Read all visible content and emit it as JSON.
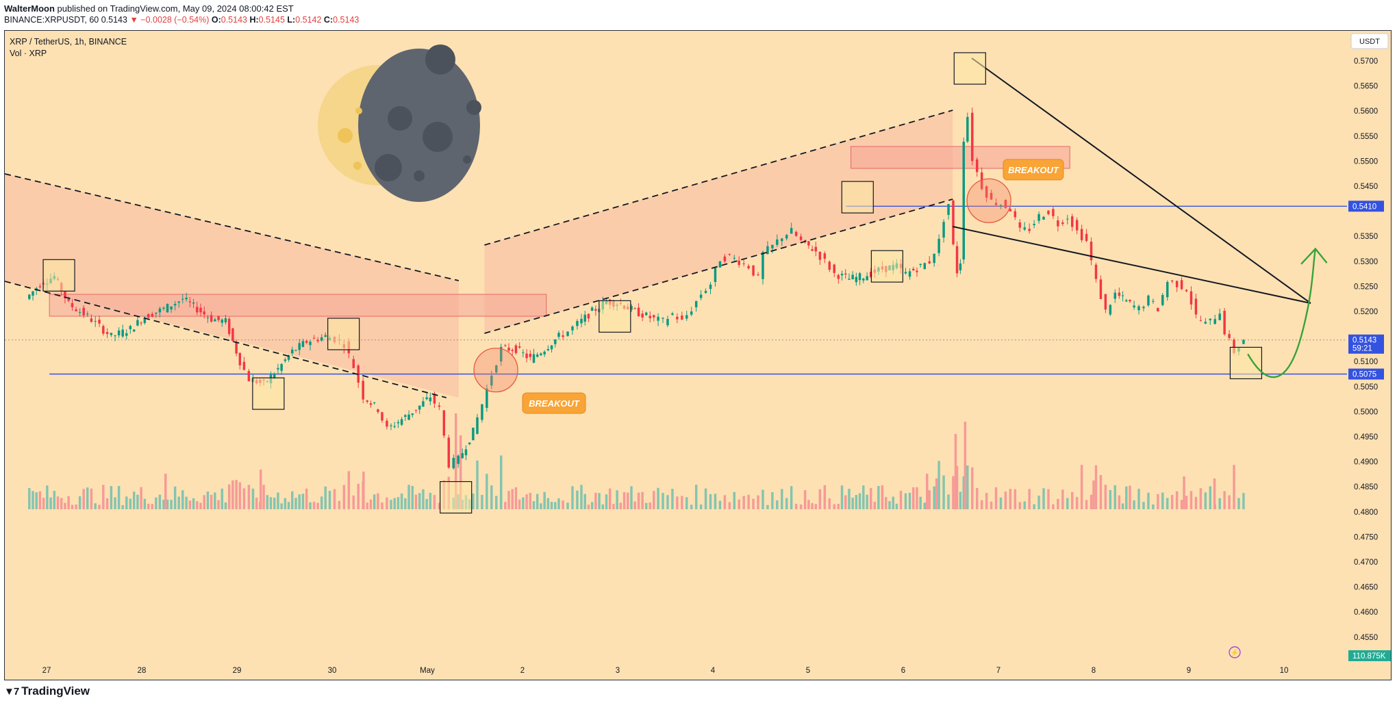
{
  "header": {
    "author": "WalterMoon",
    "published": "published on TradingView.com, May 09, 2024 08:00:42 EST",
    "symbol_line": "BINANCE:XRPUSDT, 60",
    "last": "0.5143",
    "change": "−0.0028 (−0.54%)",
    "ohlc": {
      "o_label": "O:",
      "o": "0.5143",
      "h_label": "H:",
      "h": "0.5145",
      "l_label": "L:",
      "l": "0.5142",
      "c_label": "C:",
      "c": "0.5143"
    }
  },
  "legend": {
    "pair": "XRP / TetherUS, 1h, BINANCE",
    "volume": "Vol · XRP"
  },
  "footer": {
    "brand": "TradingView"
  },
  "colors": {
    "bg": "#fde1b3",
    "up": "#089981",
    "down": "#f23645",
    "vol_up": "#84c4b0",
    "vol_down": "#f69a97",
    "hline": "#3452e0",
    "zone": "#f6a799",
    "label_orange": "#f9a436",
    "arrow": "#3aa23a",
    "moon": "#5e656f",
    "moon_glow": "#f5d68a"
  },
  "chart_data": {
    "type": "candlestick",
    "currency_button": "USDT",
    "y_ticks": [
      "0.5700",
      "0.5650",
      "0.5600",
      "0.5550",
      "0.5500",
      "0.5450",
      "0.5350",
      "0.5300",
      "0.5250",
      "0.5200",
      "0.5100",
      "0.5050",
      "0.5000",
      "0.4950",
      "0.4900",
      "0.4850",
      "0.4800",
      "0.4750",
      "0.4700",
      "0.4650",
      "0.4600",
      "0.4550"
    ],
    "ylim": [
      0.4525,
      0.574
    ],
    "x_ticks": [
      "27",
      "28",
      "29",
      "30",
      "May",
      "2",
      "3",
      "4",
      "5",
      "6",
      "7",
      "8",
      "9",
      "10"
    ],
    "price_labels": {
      "level_high": "0.5410",
      "current": "0.5143",
      "countdown": "59:21",
      "level_low": "0.5075",
      "volume": "110.875K"
    },
    "levels": [
      0.541,
      0.5075
    ],
    "annotations": [
      "BREAKOUT",
      "BREAKOUT"
    ],
    "price_path": [
      [
        26.8,
        0.5225
      ],
      [
        26.95,
        0.5255
      ],
      [
        27.1,
        0.527
      ],
      [
        27.25,
        0.5215
      ],
      [
        27.45,
        0.519
      ],
      [
        27.7,
        0.515
      ],
      [
        27.9,
        0.5165
      ],
      [
        28.05,
        0.519
      ],
      [
        28.25,
        0.5205
      ],
      [
        28.45,
        0.5225
      ],
      [
        28.6,
        0.5205
      ],
      [
        28.75,
        0.5185
      ],
      [
        28.9,
        0.518
      ],
      [
        29.05,
        0.51
      ],
      [
        29.15,
        0.5065
      ],
      [
        29.3,
        0.5055
      ],
      [
        29.45,
        0.5085
      ],
      [
        29.6,
        0.512
      ],
      [
        29.75,
        0.514
      ],
      [
        29.95,
        0.515
      ],
      [
        30.05,
        0.5145
      ],
      [
        30.15,
        0.5135
      ],
      [
        30.25,
        0.509
      ],
      [
        30.35,
        0.503
      ],
      [
        30.5,
        0.5005
      ],
      [
        30.6,
        0.4965
      ],
      [
        30.75,
        0.4985
      ],
      [
        30.9,
        0.5005
      ],
      [
        31.05,
        0.503
      ],
      [
        31.15,
        0.5005
      ],
      [
        31.25,
        0.4895
      ],
      [
        31.35,
        0.4905
      ],
      [
        31.5,
        0.496
      ],
      [
        31.6,
        0.5015
      ],
      [
        31.7,
        0.5075
      ],
      [
        31.8,
        0.5125
      ],
      [
        31.95,
        0.5125
      ],
      [
        32.1,
        0.5105
      ],
      [
        32.25,
        0.5125
      ],
      [
        32.4,
        0.515
      ],
      [
        32.5,
        0.516
      ],
      [
        32.6,
        0.5175
      ],
      [
        32.75,
        0.52
      ],
      [
        32.9,
        0.522
      ],
      [
        33.05,
        0.5215
      ],
      [
        33.2,
        0.52
      ],
      [
        33.4,
        0.5185
      ],
      [
        33.5,
        0.518
      ],
      [
        33.6,
        0.5195
      ],
      [
        33.7,
        0.518
      ],
      [
        33.8,
        0.5205
      ],
      [
        33.9,
        0.5235
      ],
      [
        34.0,
        0.5255
      ],
      [
        34.1,
        0.5305
      ],
      [
        34.2,
        0.531
      ],
      [
        34.3,
        0.53
      ],
      [
        34.4,
        0.529
      ],
      [
        34.5,
        0.5265
      ],
      [
        34.55,
        0.5315
      ],
      [
        34.65,
        0.533
      ],
      [
        34.75,
        0.535
      ],
      [
        34.85,
        0.536
      ],
      [
        34.95,
        0.534
      ],
      [
        35.1,
        0.532
      ],
      [
        35.2,
        0.53
      ],
      [
        35.3,
        0.5275
      ],
      [
        35.45,
        0.5265
      ],
      [
        35.6,
        0.527
      ],
      [
        35.8,
        0.5285
      ],
      [
        35.95,
        0.529
      ],
      [
        36.05,
        0.5275
      ],
      [
        36.2,
        0.529
      ],
      [
        36.3,
        0.53
      ],
      [
        36.4,
        0.534
      ],
      [
        36.45,
        0.5385
      ],
      [
        36.5,
        0.5415
      ],
      [
        36.55,
        0.533
      ],
      [
        36.58,
        0.528
      ],
      [
        36.62,
        0.53
      ],
      [
        36.65,
        0.5545
      ],
      [
        36.7,
        0.559
      ],
      [
        36.75,
        0.5505
      ],
      [
        36.85,
        0.545
      ],
      [
        36.95,
        0.542
      ],
      [
        37.05,
        0.5415
      ],
      [
        37.15,
        0.5405
      ],
      [
        37.25,
        0.536
      ],
      [
        37.35,
        0.5365
      ],
      [
        37.45,
        0.539
      ],
      [
        37.55,
        0.54
      ],
      [
        37.65,
        0.5375
      ],
      [
        37.75,
        0.539
      ],
      [
        37.85,
        0.536
      ],
      [
        37.95,
        0.534
      ],
      [
        38.05,
        0.526
      ],
      [
        38.15,
        0.52
      ],
      [
        38.25,
        0.5235
      ],
      [
        38.4,
        0.5215
      ],
      [
        38.5,
        0.5205
      ],
      [
        38.6,
        0.5225
      ],
      [
        38.7,
        0.5205
      ],
      [
        38.8,
        0.526
      ],
      [
        38.9,
        0.5255
      ],
      [
        39.0,
        0.5245
      ],
      [
        39.1,
        0.519
      ],
      [
        39.2,
        0.5175
      ],
      [
        39.25,
        0.518
      ],
      [
        39.35,
        0.52
      ],
      [
        39.4,
        0.516
      ],
      [
        39.5,
        0.512
      ],
      [
        39.6,
        0.5143
      ]
    ]
  }
}
